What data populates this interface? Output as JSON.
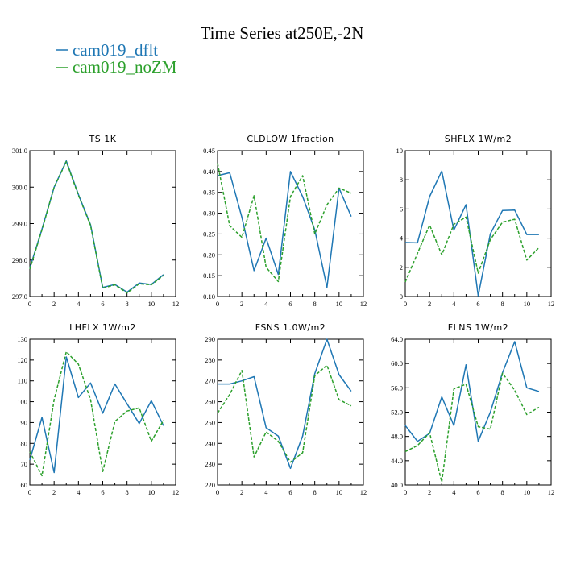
{
  "figure": {
    "title": "Time Series at250E,-2N",
    "colors": {
      "dflt": "#1f77b4",
      "noZM": "#2ca02c"
    },
    "legend": [
      {
        "label": "cam019_dflt",
        "color": "#1f77b4",
        "style": "solid"
      },
      {
        "label": "cam019_noZM",
        "color": "#2ca02c",
        "style": "solid"
      }
    ]
  },
  "chart_data": [
    {
      "type": "line",
      "title": "TS   1K",
      "x": [
        0,
        1,
        2,
        3,
        4,
        5,
        6,
        7,
        8,
        9,
        10,
        11
      ],
      "xlim": [
        0,
        12
      ],
      "xticks": [
        0,
        2,
        4,
        6,
        8,
        10,
        12
      ],
      "ylim": [
        297.0,
        301.0
      ],
      "yticks": [
        "297.0",
        "298.0",
        "299.0",
        "300.0",
        "301.0"
      ],
      "series": [
        {
          "name": "cam019_dflt",
          "values": [
            297.78,
            298.85,
            300.0,
            300.72,
            299.8,
            298.97,
            297.25,
            297.33,
            297.12,
            297.37,
            297.33,
            297.6
          ]
        },
        {
          "name": "cam019_noZM",
          "values": [
            297.75,
            298.83,
            300.0,
            300.7,
            299.78,
            298.95,
            297.23,
            297.32,
            297.1,
            297.35,
            297.32,
            297.58
          ]
        }
      ]
    },
    {
      "type": "line",
      "title": "CLDLOW   1fraction",
      "x": [
        0,
        1,
        2,
        3,
        4,
        5,
        6,
        7,
        8,
        9,
        10,
        11
      ],
      "xlim": [
        0,
        12
      ],
      "xticks": [
        0,
        2,
        4,
        6,
        8,
        10,
        12
      ],
      "ylim": [
        0.1,
        0.45
      ],
      "yticks": [
        "0.10",
        "0.15",
        "0.20",
        "0.25",
        "0.30",
        "0.35",
        "0.40",
        "0.45"
      ],
      "series": [
        {
          "name": "cam019_dflt",
          "values": [
            0.39,
            0.397,
            0.29,
            0.162,
            0.24,
            0.153,
            0.4,
            0.34,
            0.26,
            0.122,
            0.36,
            0.292
          ]
        },
        {
          "name": "cam019_noZM",
          "values": [
            0.42,
            0.27,
            0.242,
            0.342,
            0.17,
            0.136,
            0.34,
            0.39,
            0.25,
            0.32,
            0.36,
            0.348
          ]
        }
      ]
    },
    {
      "type": "line",
      "title": "SHFLX   1W/m2",
      "x": [
        0,
        1,
        2,
        3,
        4,
        5,
        6,
        7,
        8,
        9,
        10,
        11
      ],
      "xlim": [
        0,
        12
      ],
      "xticks": [
        0,
        2,
        4,
        6,
        8,
        10,
        12
      ],
      "ylim": [
        0,
        10
      ],
      "yticks": [
        "0",
        "2",
        "4",
        "6",
        "8",
        "10"
      ],
      "series": [
        {
          "name": "cam019_dflt",
          "values": [
            3.7,
            3.68,
            6.85,
            8.6,
            4.55,
            6.3,
            0.05,
            4.3,
            5.9,
            5.92,
            4.25,
            4.25
          ]
        },
        {
          "name": "cam019_noZM",
          "values": [
            1.0,
            2.95,
            4.9,
            2.85,
            4.95,
            5.45,
            1.6,
            3.9,
            5.1,
            5.3,
            2.5,
            3.35
          ]
        }
      ]
    },
    {
      "type": "line",
      "title": "LHFLX   1W/m2",
      "x": [
        0,
        1,
        2,
        3,
        4,
        5,
        6,
        7,
        8,
        9,
        10,
        11
      ],
      "xlim": [
        0,
        12
      ],
      "xticks": [
        0,
        2,
        4,
        6,
        8,
        10,
        12
      ],
      "ylim": [
        60,
        130
      ],
      "yticks": [
        "60",
        "70",
        "80",
        "90",
        "100",
        "110",
        "120",
        "130"
      ],
      "series": [
        {
          "name": "cam019_dflt",
          "values": [
            72,
            92.5,
            66,
            121.5,
            102,
            109,
            94.5,
            108.5,
            99,
            89.5,
            100.5,
            88.5
          ]
        },
        {
          "name": "cam019_noZM",
          "values": [
            76,
            64.5,
            101,
            124,
            118,
            101,
            66.5,
            90.5,
            95.5,
            97,
            81,
            91
          ]
        }
      ]
    },
    {
      "type": "line",
      "title": "FSNS   1.0W/m2",
      "x": [
        0,
        1,
        2,
        3,
        4,
        5,
        6,
        7,
        8,
        9,
        10,
        11
      ],
      "xlim": [
        0,
        12
      ],
      "xticks": [
        0,
        2,
        4,
        6,
        8,
        10,
        12
      ],
      "ylim": [
        220,
        290
      ],
      "yticks": [
        "220",
        "230",
        "240",
        "250",
        "260",
        "270",
        "280",
        "290"
      ],
      "series": [
        {
          "name": "cam019_dflt",
          "values": [
            268.5,
            268.5,
            270,
            272,
            247.5,
            243.5,
            228,
            243.5,
            273.5,
            290,
            273,
            265
          ]
        },
        {
          "name": "cam019_noZM",
          "values": [
            254.5,
            263.5,
            275,
            233.5,
            245.5,
            241,
            231,
            235.5,
            272.5,
            277.5,
            261,
            258
          ]
        }
      ]
    },
    {
      "type": "line",
      "title": "FLNS   1W/m2",
      "x": [
        0,
        1,
        2,
        3,
        4,
        5,
        6,
        7,
        8,
        9,
        10,
        11
      ],
      "xlim": [
        0,
        12
      ],
      "xticks": [
        0,
        2,
        4,
        6,
        8,
        10,
        12
      ],
      "ylim": [
        40.0,
        64.0
      ],
      "yticks": [
        "40.0",
        "44.0",
        "48.0",
        "52.0",
        "56.0",
        "60.0",
        "64.0"
      ],
      "series": [
        {
          "name": "cam019_dflt",
          "values": [
            49.8,
            47.2,
            48.5,
            54.5,
            49.8,
            59.8,
            47.2,
            52.0,
            58.5,
            63.6,
            56.0,
            55.4
          ]
        },
        {
          "name": "cam019_noZM",
          "values": [
            45.5,
            46.5,
            48.6,
            40.5,
            55.8,
            56.6,
            49.6,
            49.2,
            58.4,
            55.6,
            51.6,
            52.8
          ]
        }
      ]
    }
  ]
}
